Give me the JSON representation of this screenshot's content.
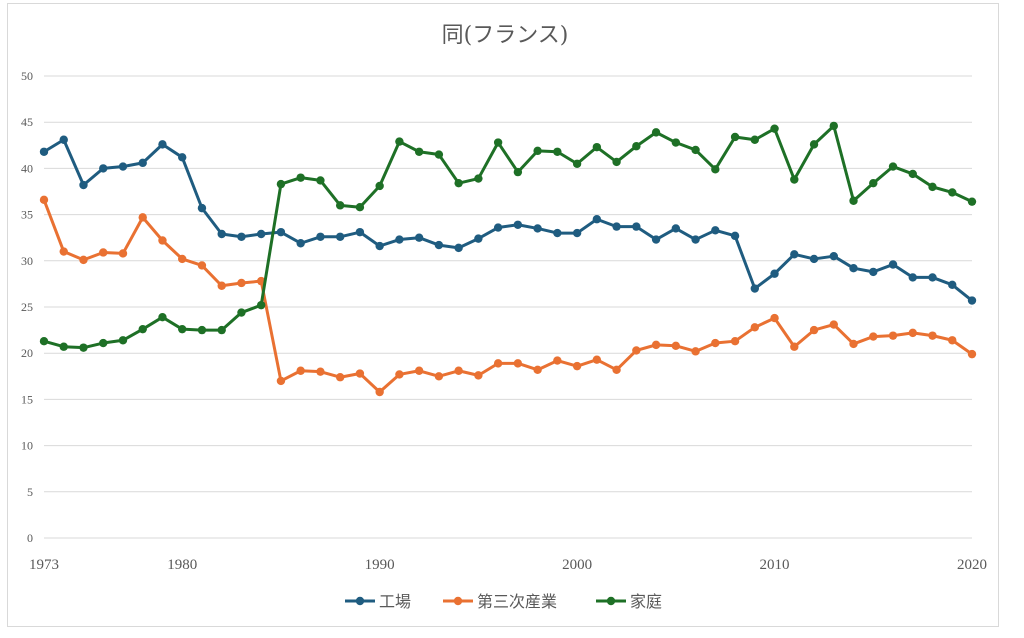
{
  "chart_data": {
    "type": "line",
    "title": "同(フランス)",
    "xlabel": "",
    "ylabel": "",
    "ylim": [
      0,
      50
    ],
    "yticks": [
      "0",
      "5",
      "10",
      "15",
      "20",
      "25",
      "30",
      "35",
      "40",
      "45",
      "50"
    ],
    "xticks": [
      "1973",
      "1980",
      "1990",
      "2000",
      "2010",
      "2020"
    ],
    "x": [
      1973,
      1974,
      1975,
      1976,
      1977,
      1978,
      1979,
      1980,
      1981,
      1982,
      1983,
      1984,
      1985,
      1986,
      1987,
      1988,
      1989,
      1990,
      1991,
      1992,
      1993,
      1994,
      1995,
      1996,
      1997,
      1998,
      1999,
      2000,
      2001,
      2002,
      2003,
      2004,
      2005,
      2006,
      2007,
      2008,
      2009,
      2010,
      2011,
      2012,
      2013,
      2014,
      2015,
      2016,
      2017,
      2018,
      2019,
      2020
    ],
    "grid": true,
    "legend_position": "bottom",
    "series": [
      {
        "name": "工場",
        "color": "#1f5c80",
        "values": [
          41.8,
          43.1,
          38.2,
          40.0,
          40.2,
          40.6,
          42.6,
          41.2,
          35.7,
          32.9,
          32.6,
          32.9,
          33.1,
          31.9,
          32.6,
          32.6,
          33.1,
          31.6,
          32.3,
          32.5,
          31.7,
          31.4,
          32.4,
          33.6,
          33.9,
          33.5,
          33.0,
          33.0,
          34.5,
          33.7,
          33.7,
          32.3,
          33.5,
          32.3,
          33.3,
          32.7,
          27.0,
          28.6,
          30.7,
          30.2,
          30.5,
          29.2,
          28.8,
          29.6,
          28.2,
          28.2,
          27.4,
          25.7
        ]
      },
      {
        "name": "第三次産業",
        "color": "#e97132",
        "values": [
          36.6,
          31.0,
          30.1,
          30.9,
          30.8,
          34.7,
          32.2,
          30.2,
          29.5,
          27.3,
          27.6,
          27.8,
          17.0,
          18.1,
          18.0,
          17.4,
          17.8,
          15.8,
          17.7,
          18.1,
          17.5,
          18.1,
          17.6,
          18.9,
          18.9,
          18.2,
          19.2,
          18.6,
          19.3,
          18.2,
          20.3,
          20.9,
          20.8,
          20.2,
          21.1,
          21.3,
          22.8,
          23.8,
          20.7,
          22.5,
          23.1,
          21.0,
          21.8,
          21.9,
          22.2,
          21.9,
          21.4,
          19.9
        ]
      },
      {
        "name": "家庭",
        "color": "#1e7026",
        "values": [
          21.3,
          20.7,
          20.6,
          21.1,
          21.4,
          22.6,
          23.9,
          22.6,
          22.5,
          22.5,
          24.4,
          25.2,
          38.3,
          39.0,
          38.7,
          36.0,
          35.8,
          38.1,
          42.9,
          41.8,
          41.5,
          38.4,
          38.9,
          42.8,
          39.6,
          41.9,
          41.8,
          40.5,
          42.3,
          40.7,
          42.4,
          43.9,
          42.8,
          42.0,
          39.9,
          43.4,
          43.1,
          44.3,
          38.8,
          42.6,
          44.6,
          36.5,
          38.4,
          40.2,
          39.4,
          38.0,
          37.4,
          36.4
        ]
      }
    ]
  }
}
